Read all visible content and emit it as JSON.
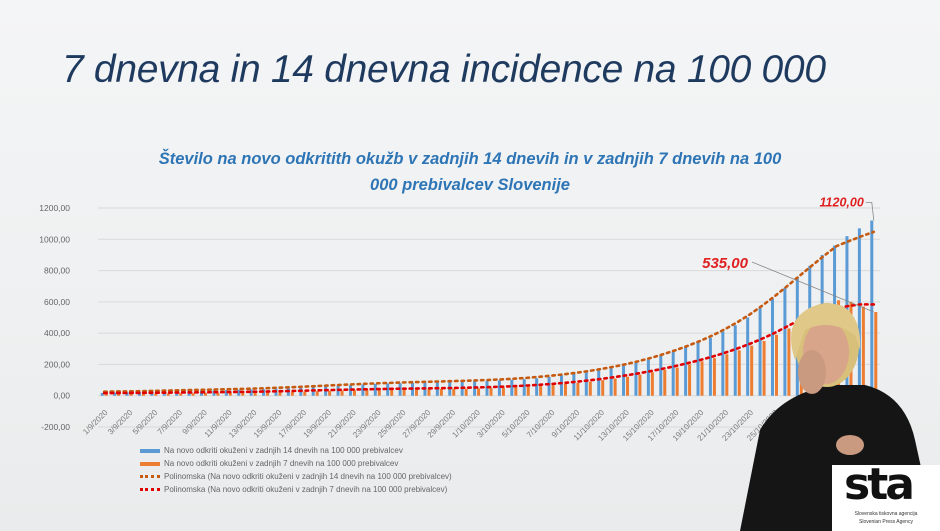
{
  "slide": {
    "title": "7 dnevna in 14 dnevna incidence na 100 000"
  },
  "logo": {
    "text": "sta",
    "line1": "Slovenska tiskovna agencija",
    "line2": "Slovenian Press Agency"
  },
  "colors": {
    "bars14": "#5b9bd5",
    "bars7": "#ed7d31",
    "trend14": "#c55a11",
    "trend7": "#e00000",
    "title": "#2e75b6",
    "annotation": "#e02020"
  },
  "chart_data": {
    "type": "bar",
    "title_line1": "Število na novo odkritith okužb v zadnjih 14 dnevih in v zadnjih 7 dnevih na 100",
    "title_line2": "000 prebivalcev Slovenije",
    "start_date": "1/9/2020",
    "x": [
      "1/9/2020",
      "2/9/2020",
      "3/9/2020",
      "4/9/2020",
      "5/9/2020",
      "6/9/2020",
      "7/9/2020",
      "8/9/2020",
      "9/9/2020",
      "10/9/2020",
      "11/9/2020",
      "12/9/2020",
      "13/9/2020",
      "14/9/2020",
      "15/9/2020",
      "16/9/2020",
      "17/9/2020",
      "18/9/2020",
      "19/9/2020",
      "20/9/2020",
      "21/9/2020",
      "22/9/2020",
      "23/9/2020",
      "24/9/2020",
      "25/9/2020",
      "26/9/2020",
      "27/9/2020",
      "28/9/2020",
      "29/9/2020",
      "30/9/2020",
      "1/10/2020",
      "2/10/2020",
      "3/10/2020",
      "4/10/2020",
      "5/10/2020",
      "6/10/2020",
      "7/10/2020",
      "8/10/2020",
      "9/10/2020",
      "10/10/2020",
      "11/10/2020",
      "12/10/2020",
      "13/10/2020",
      "14/10/2020",
      "15/10/2020",
      "16/10/2020",
      "17/10/2020",
      "18/10/2020",
      "19/10/2020",
      "20/10/2020",
      "21/10/2020",
      "22/10/2020",
      "23/10/2020",
      "24/10/2020",
      "25/10/2020",
      "26/10/2020",
      "27/10/2020",
      "28/10/2020",
      "29/10/2020",
      "30/10/2020",
      "31/10/2020",
      "1/11/2020",
      "2/11/2020"
    ],
    "x_tick_labels": [
      "1/9/2020",
      "3/9/2020",
      "5/9/2020",
      "7/9/2020",
      "9/9/2020",
      "11/9/2020",
      "13/9/2020",
      "15/9/2020",
      "17/9/2020",
      "19/9/2020",
      "21/9/2020",
      "23/9/2020",
      "25/9/2020",
      "27/9/2020",
      "29/9/2020",
      "1/10/2020",
      "3/10/2020",
      "5/10/2020",
      "7/10/2020",
      "9/10/2020",
      "11/10/2020",
      "13/10/2020",
      "15/10/2020",
      "17/10/2020",
      "19/10/2020",
      "21/10/2020",
      "23/10/2020",
      "25/10/2020"
    ],
    "y_tick_labels": [
      "1200,00",
      "1000,00",
      "800,00",
      "600,00",
      "400,00",
      "200,00",
      "0,00",
      "-200,00"
    ],
    "ylim": [
      -200,
      1200
    ],
    "grid": true,
    "legend_position": "bottom",
    "series": [
      {
        "name": "Na novo odkriti okuženi v zadnjih 14 dnevih na 100 000 prebivalcev",
        "kind": "bar",
        "values": [
          18,
          20,
          22,
          24,
          26,
          28,
          30,
          32,
          33,
          34,
          36,
          38,
          40,
          42,
          45,
          48,
          52,
          56,
          60,
          64,
          68,
          72,
          75,
          78,
          80,
          82,
          84,
          86,
          88,
          90,
          92,
          95,
          98,
          102,
          106,
          112,
          120,
          130,
          140,
          150,
          162,
          175,
          190,
          210,
          230,
          255,
          280,
          310,
          340,
          370,
          410,
          450,
          500,
          560,
          620,
          690,
          760,
          830,
          900,
          960,
          1020,
          1070,
          1120
        ]
      },
      {
        "name": "Na novo odkriti okuženi v zadnjih 7 dnevih na 100 000 prebivalcev",
        "kind": "bar",
        "values": [
          10,
          11,
          12,
          13,
          14,
          15,
          16,
          16,
          17,
          17,
          18,
          19,
          20,
          21,
          23,
          25,
          27,
          29,
          31,
          33,
          35,
          37,
          38,
          39,
          40,
          41,
          42,
          43,
          44,
          45,
          47,
          49,
          52,
          55,
          58,
          62,
          68,
          75,
          82,
          90,
          100,
          110,
          122,
          135,
          150,
          165,
          180,
          200,
          220,
          240,
          265,
          290,
          320,
          350,
          390,
          430,
          470,
          520,
          580,
          610,
          600,
          570,
          535
        ]
      },
      {
        "name": "Polinomska (Na novo odkriti okuženi v zadnjih 14 dnevih na 100 000 prebivalcev)",
        "kind": "trend",
        "of": 0
      },
      {
        "name": "Polinomska (Na novo odkriti okuženi v zadnjih 7 dnevih na 100 000 prebivalcev)",
        "kind": "trend",
        "of": 1
      }
    ],
    "annotations": [
      {
        "text": "1120,00",
        "series": 0,
        "date": "2/11/2020",
        "value": 1120
      },
      {
        "text": "535,00",
        "series": 1,
        "date": "2/11/2020",
        "value": 535
      }
    ]
  }
}
